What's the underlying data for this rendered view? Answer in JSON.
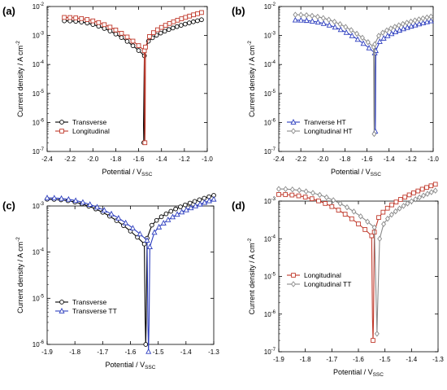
{
  "figure": {
    "panels": [
      {
        "id": "a",
        "letter": "(a)",
        "x_label": "Potential / V",
        "x_sub": "SSC",
        "y_label": "Current density / A cm",
        "y_sup": "-2"
      },
      {
        "id": "b",
        "letter": "(b)",
        "x_label": "Potential / V",
        "x_sub": "SSC",
        "y_label": "Current density / A cm",
        "y_sup": "-2"
      },
      {
        "id": "c",
        "letter": "(c)",
        "x_label": "Potential / V",
        "x_sub": "SSC",
        "y_label": "Current density / A cm",
        "y_sup": "-2"
      },
      {
        "id": "d",
        "letter": "(d)",
        "x_label": "Potential / V",
        "x_sub": "SSC",
        "y_label": "Current density / A cm",
        "y_sup": "-2"
      }
    ]
  },
  "chart_data": [
    {
      "type": "line",
      "panel": "a",
      "scale_y": "log",
      "xlim": [
        -2.4,
        -1.0
      ],
      "ylim_exp": [
        -7,
        -2
      ],
      "x_ticks": [
        "-2.4",
        "-2.2",
        "-2.0",
        "-1.8",
        "-1.6",
        "-1.4",
        "-1.2",
        "-1.0"
      ],
      "y_tick_exps": [
        -7,
        -6,
        -5,
        -4,
        -3,
        -2
      ],
      "legend_position": "left",
      "series": [
        {
          "name": "Transverse",
          "color": "#000000",
          "marker": "circle",
          "Ecorr": -1.555,
          "cathodic": [
            -2.25,
            0.0032,
            -1.55,
            0.0002
          ],
          "anodic": [
            -1.55,
            0.0003,
            -1.05,
            0.0035
          ],
          "dip_min": 2e-07
        },
        {
          "name": "Longitudinal",
          "color": "#c0392b",
          "marker": "square",
          "Ecorr": -1.545,
          "cathodic": [
            -2.25,
            0.0042,
            -1.55,
            0.0003
          ],
          "anodic": [
            -1.54,
            0.0004,
            -1.05,
            0.0062
          ],
          "dip_min": 2e-07
        }
      ]
    },
    {
      "type": "line",
      "panel": "b",
      "scale_y": "log",
      "xlim": [
        -2.4,
        -1.0
      ],
      "ylim_exp": [
        -7,
        -2
      ],
      "x_ticks": [
        "-2.4",
        "-2.2",
        "-2.0",
        "-1.8",
        "-1.6",
        "-1.4",
        "-1.2",
        "-1.0"
      ],
      "y_tick_exps": [
        -7,
        -6,
        -5,
        -4,
        -3,
        -2
      ],
      "legend_position": "left",
      "series": [
        {
          "name": "Tranverse HT",
          "color": "#2e3fbf",
          "marker": "triangle",
          "Ecorr": -1.525,
          "cathodic": [
            -2.25,
            0.0034,
            -1.53,
            0.00025
          ],
          "anodic": [
            -1.52,
            0.0003,
            -1.02,
            0.0032
          ],
          "dip_min": 5e-07
        },
        {
          "name": "Longitudinal HT",
          "color": "#8a8a8a",
          "marker": "diamond",
          "Ecorr": -1.535,
          "cathodic": [
            -2.25,
            0.0052,
            -1.54,
            0.0004
          ],
          "anodic": [
            -1.53,
            0.0005,
            -1.02,
            0.0045
          ],
          "dip_min": 4e-07
        }
      ]
    },
    {
      "type": "line",
      "panel": "c",
      "scale_y": "log",
      "xlim": [
        -1.9,
        -1.3
      ],
      "ylim_exp": [
        -6,
        -3
      ],
      "x_ticks": [
        "-1.9",
        "-1.8",
        "-1.7",
        "-1.6",
        "-1.5",
        "-1.4",
        "-1.3"
      ],
      "y_tick_exps": [
        -6,
        -5,
        -4,
        -3
      ],
      "legend_position": "left",
      "series": [
        {
          "name": "Transverse",
          "color": "#000000",
          "marker": "circle",
          "Ecorr": -1.545,
          "cathodic": [
            -1.9,
            0.0014,
            -1.55,
            0.00015
          ],
          "anodic": [
            -1.54,
            0.0002,
            -1.3,
            0.0017
          ],
          "dip_min": 1e-06
        },
        {
          "name": "Transverse TT",
          "color": "#2e3fbf",
          "marker": "triangle",
          "Ecorr": -1.535,
          "cathodic": [
            -1.9,
            0.0015,
            -1.54,
            0.00018
          ],
          "anodic": [
            -1.53,
            0.00013,
            -1.3,
            0.0014
          ],
          "dip_min": 7e-07
        }
      ]
    },
    {
      "type": "line",
      "panel": "d",
      "scale_y": "log",
      "xlim": [
        -1.9,
        -1.3
      ],
      "ylim_exp": [
        -7,
        -3
      ],
      "x_ticks": [
        "-1.9",
        "-1.8",
        "-1.7",
        "-1.6",
        "-1.5",
        "-1.4",
        "-1.3"
      ],
      "y_tick_exps": [
        -7,
        -6,
        -5,
        -4,
        -3
      ],
      "legend_position": "left",
      "series": [
        {
          "name": "Longitudinal",
          "color": "#c0392b",
          "marker": "square",
          "Ecorr": -1.545,
          "cathodic": [
            -1.9,
            0.0015,
            -1.55,
            0.00012
          ],
          "anodic": [
            -1.54,
            0.00015,
            -1.31,
            0.0028
          ],
          "dip_min": 2e-07
        },
        {
          "name": "Longitudinal TT",
          "color": "#8a8a8a",
          "marker": "diamond",
          "Ecorr": -1.53,
          "cathodic": [
            -1.9,
            0.0021,
            -1.54,
            0.0002
          ],
          "anodic": [
            -1.52,
            0.0001,
            -1.31,
            0.0019
          ],
          "dip_min": 3e-07
        }
      ]
    }
  ]
}
